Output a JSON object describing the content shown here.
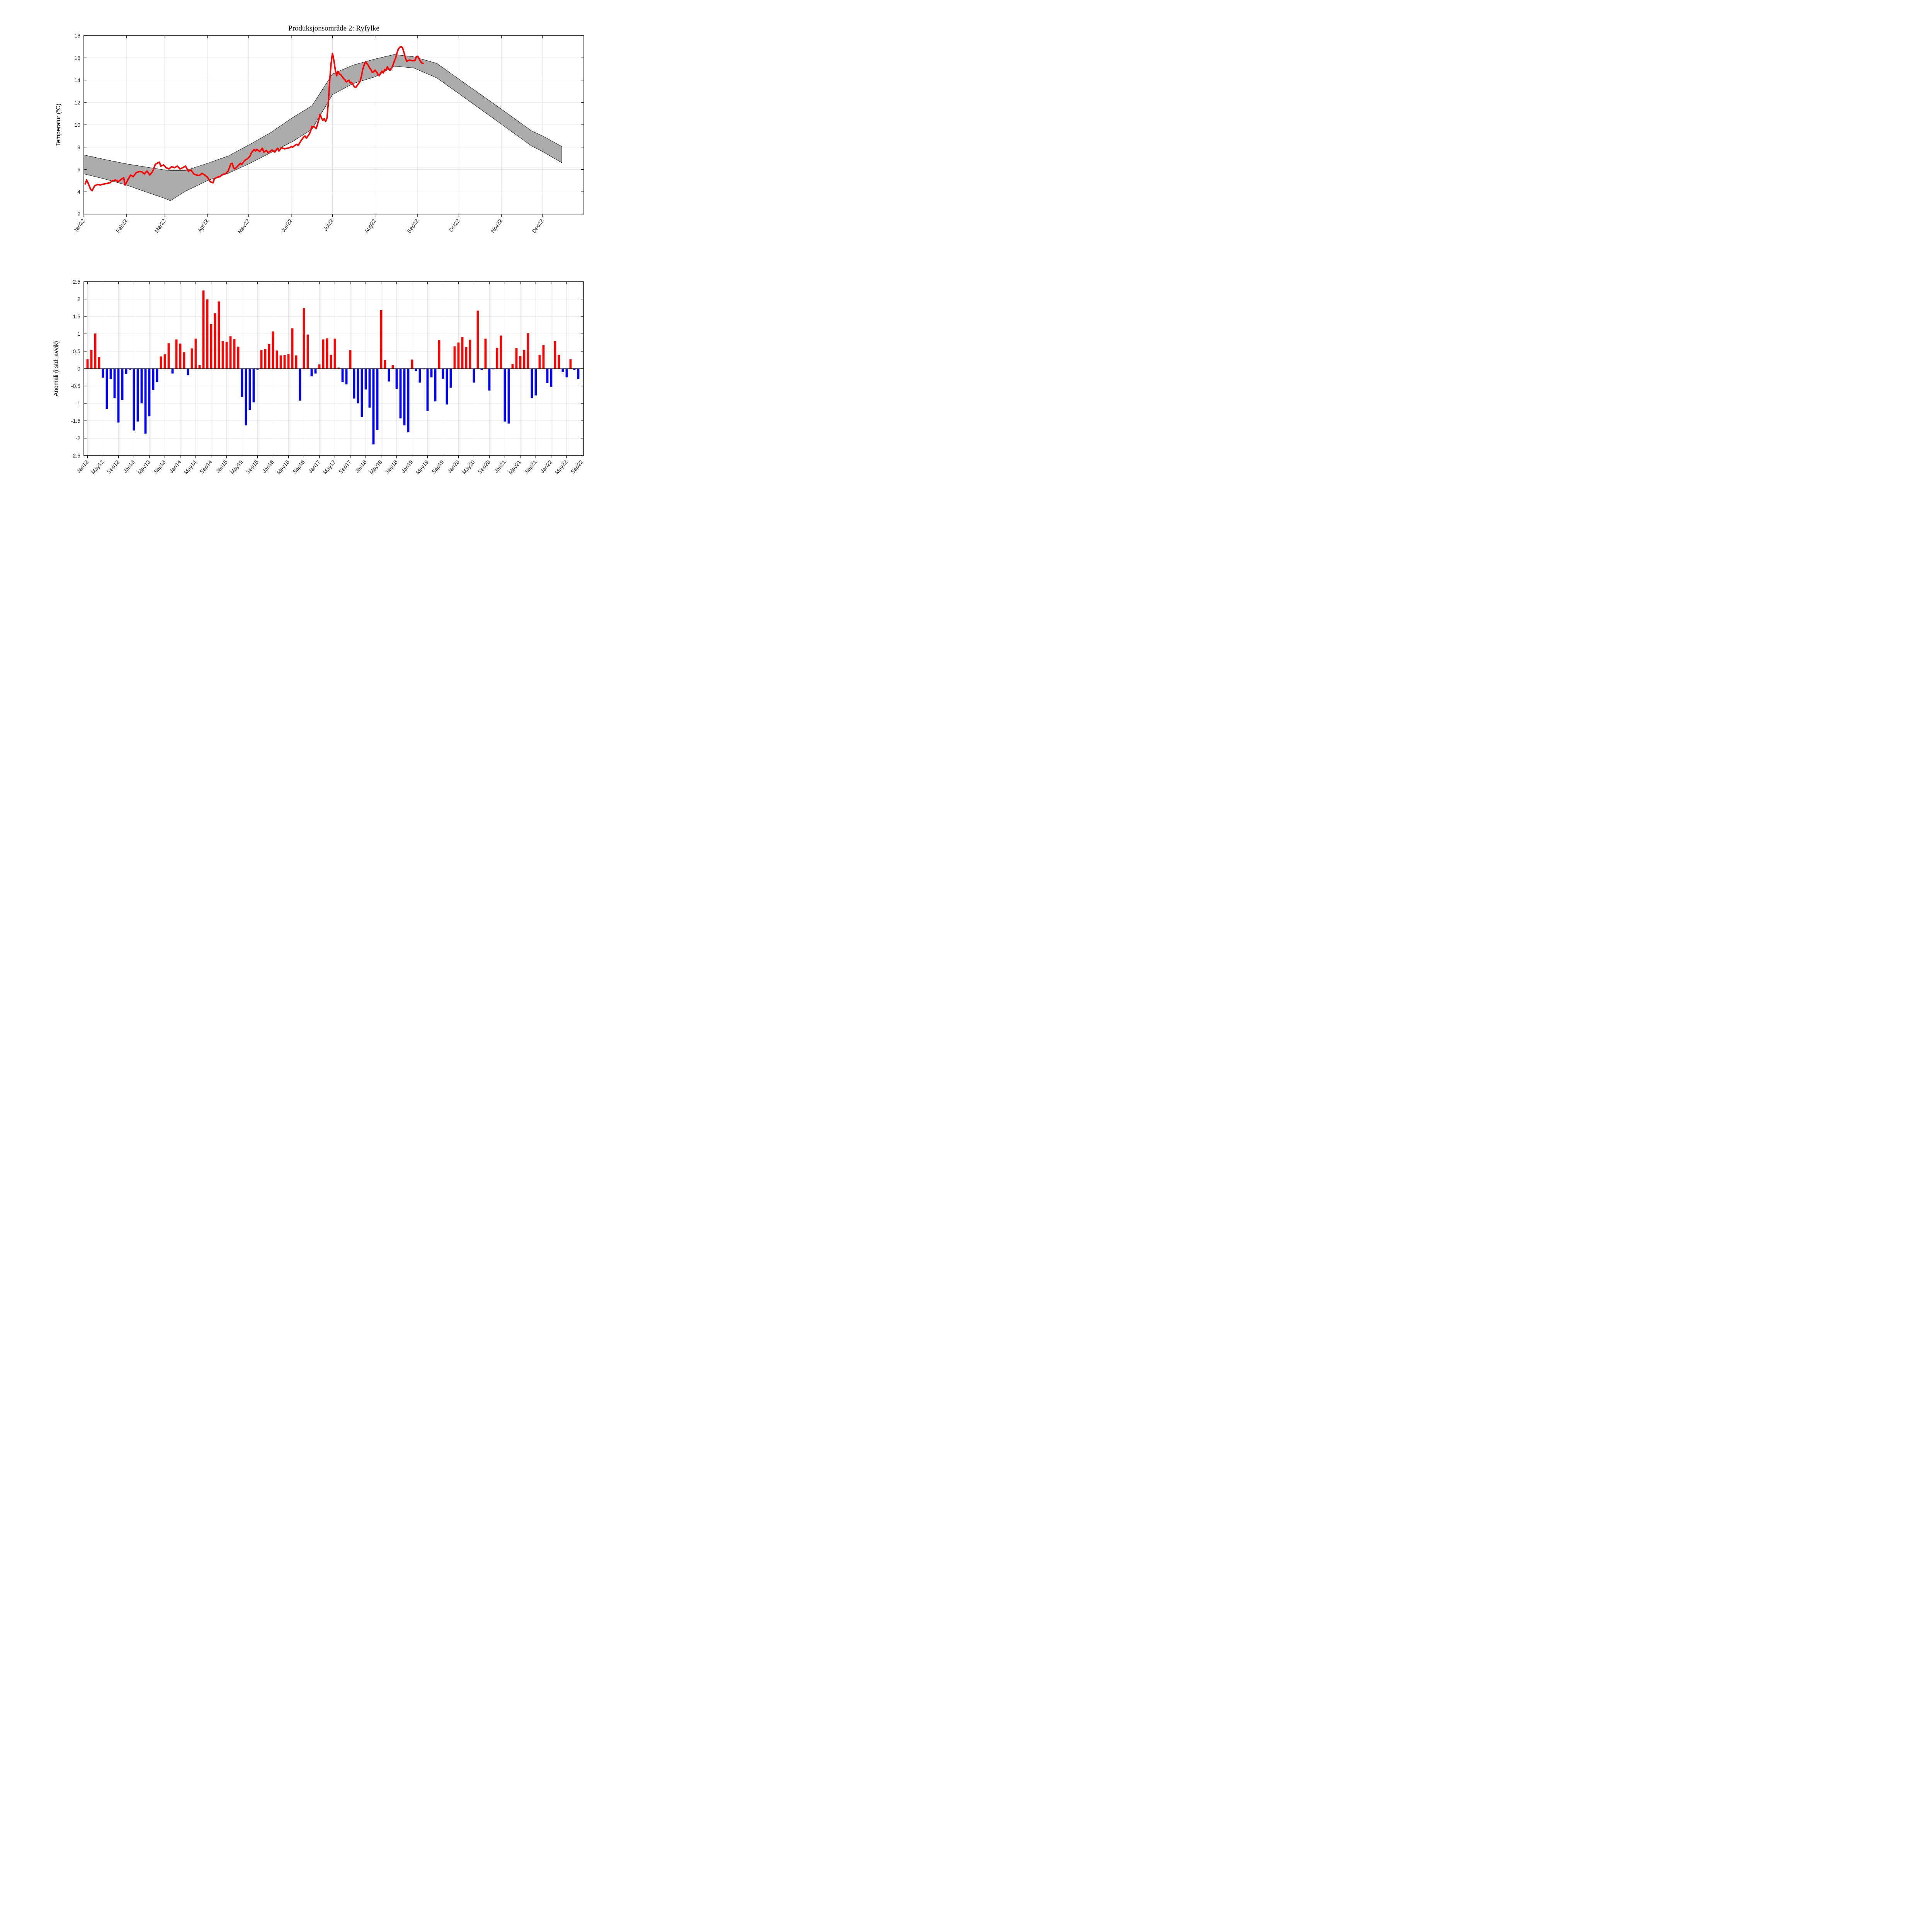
{
  "page": {
    "title": "Produksjonsområde 2: Ryfylke"
  },
  "chart_data": [
    {
      "type": "line",
      "title": "Produksjonsområde 2: Ryfylke",
      "ylabel_parts": [
        "Temperatur (",
        "o",
        "C)"
      ],
      "ylim": [
        2,
        18
      ],
      "yticks": [
        2,
        4,
        6,
        8,
        10,
        12,
        14,
        16,
        18
      ],
      "ytick_labels": [
        "2",
        "4",
        "6",
        "8",
        "10",
        "12",
        "14",
        "16",
        "18"
      ],
      "x_range_days": [
        0,
        364
      ],
      "xtick_days": [
        0,
        31,
        59,
        90,
        120,
        151,
        181,
        212,
        243,
        273,
        304,
        334
      ],
      "xtick_labels": [
        "Jan22",
        "Feb22",
        "Mar22",
        "Apr22",
        "May22",
        "Jun22",
        "Jul22",
        "Aug22",
        "Sep22",
        "Oct22",
        "Nov22",
        "Dec22"
      ],
      "grid": true,
      "line_color": "#ff0000",
      "band_fill": "#ababab",
      "band_edge": "#000000",
      "series": [
        {
          "name": "temperatur-2022",
          "points": [
            [
              1,
              4.7
            ],
            [
              2,
              5.05
            ],
            [
              3,
              4.8
            ],
            [
              5,
              4.2
            ],
            [
              6,
              4.1
            ],
            [
              8,
              4.55
            ],
            [
              10,
              4.65
            ],
            [
              12,
              4.6
            ],
            [
              13,
              4.65
            ],
            [
              15,
              4.7
            ],
            [
              17,
              4.75
            ],
            [
              19,
              4.8
            ],
            [
              21,
              5.0
            ],
            [
              23,
              5.05
            ],
            [
              25,
              4.9
            ],
            [
              27,
              5.1
            ],
            [
              29,
              5.25
            ],
            [
              30,
              4.6
            ],
            [
              32,
              5.05
            ],
            [
              34,
              5.5
            ],
            [
              36,
              5.35
            ],
            [
              38,
              5.7
            ],
            [
              40,
              5.8
            ],
            [
              42,
              5.8
            ],
            [
              44,
              5.6
            ],
            [
              46,
              5.85
            ],
            [
              48,
              5.5
            ],
            [
              50,
              5.8
            ],
            [
              52,
              6.45
            ],
            [
              54,
              6.6
            ],
            [
              55,
              6.65
            ],
            [
              56,
              6.3
            ],
            [
              58,
              6.4
            ],
            [
              60,
              6.15
            ],
            [
              62,
              6.05
            ],
            [
              64,
              6.25
            ],
            [
              66,
              6.15
            ],
            [
              68,
              6.3
            ],
            [
              70,
              6.05
            ],
            [
              72,
              6.15
            ],
            [
              74,
              6.3
            ],
            [
              76,
              5.85
            ],
            [
              78,
              5.95
            ],
            [
              80,
              5.6
            ],
            [
              82,
              5.5
            ],
            [
              84,
              5.45
            ],
            [
              86,
              5.65
            ],
            [
              88,
              5.5
            ],
            [
              90,
              5.3
            ],
            [
              92,
              4.9
            ],
            [
              94,
              4.8
            ],
            [
              95,
              5.15
            ],
            [
              97,
              5.3
            ],
            [
              99,
              5.35
            ],
            [
              101,
              5.55
            ],
            [
              103,
              5.6
            ],
            [
              105,
              5.85
            ],
            [
              107,
              6.5
            ],
            [
              108,
              6.55
            ],
            [
              109,
              6.15
            ],
            [
              110,
              6.05
            ],
            [
              112,
              6.3
            ],
            [
              114,
              6.55
            ],
            [
              115,
              6.45
            ],
            [
              117,
              6.8
            ],
            [
              119,
              6.95
            ],
            [
              121,
              7.2
            ],
            [
              122,
              7.5
            ],
            [
              124,
              7.8
            ],
            [
              125,
              7.65
            ],
            [
              126,
              7.8
            ],
            [
              128,
              7.6
            ],
            [
              130,
              7.9
            ],
            [
              131,
              7.55
            ],
            [
              133,
              7.7
            ],
            [
              134,
              7.5
            ],
            [
              136,
              7.65
            ],
            [
              137,
              7.75
            ],
            [
              139,
              7.55
            ],
            [
              141,
              7.9
            ],
            [
              142,
              7.65
            ],
            [
              144,
              7.95
            ],
            [
              146,
              7.85
            ],
            [
              148,
              7.9
            ],
            [
              150,
              7.95
            ],
            [
              151,
              8.05
            ],
            [
              152,
              8.0
            ],
            [
              153,
              8.1
            ],
            [
              155,
              8.25
            ],
            [
              156,
              8.15
            ],
            [
              158,
              8.55
            ],
            [
              160,
              8.9
            ],
            [
              161,
              9.0
            ],
            [
              162,
              8.8
            ],
            [
              164,
              9.15
            ],
            [
              165,
              9.4
            ],
            [
              166,
              9.85
            ],
            [
              168,
              9.8
            ],
            [
              169,
              9.65
            ],
            [
              170,
              10.0
            ],
            [
              171,
              10.45
            ],
            [
              172,
              10.95
            ],
            [
              173,
              10.6
            ],
            [
              174,
              10.4
            ],
            [
              175,
              10.55
            ],
            [
              176,
              10.3
            ],
            [
              177,
              10.6
            ],
            [
              178,
              12.0
            ],
            [
              179,
              14.0
            ],
            [
              180,
              15.5
            ],
            [
              181,
              16.4
            ],
            [
              182,
              15.8
            ],
            [
              183,
              14.95
            ],
            [
              184,
              14.4
            ],
            [
              185,
              14.8
            ],
            [
              186,
              14.55
            ],
            [
              187,
              14.5
            ],
            [
              189,
              14.15
            ],
            [
              190,
              14.05
            ],
            [
              191,
              13.85
            ],
            [
              193,
              14.0
            ],
            [
              194,
              13.75
            ],
            [
              195,
              13.8
            ],
            [
              197,
              13.4
            ],
            [
              198,
              13.35
            ],
            [
              200,
              13.7
            ],
            [
              201,
              13.87
            ],
            [
              202,
              14.3
            ],
            [
              203,
              14.95
            ],
            [
              204,
              15.35
            ],
            [
              205,
              15.65
            ],
            [
              206,
              15.5
            ],
            [
              207,
              15.35
            ],
            [
              208,
              15.1
            ],
            [
              209,
              14.95
            ],
            [
              210,
              14.7
            ],
            [
              211,
              14.75
            ],
            [
              212,
              14.9
            ],
            [
              213,
              14.75
            ],
            [
              214,
              14.55
            ],
            [
              215,
              14.4
            ],
            [
              216,
              14.6
            ],
            [
              217,
              14.8
            ],
            [
              218,
              14.65
            ],
            [
              219,
              14.95
            ],
            [
              220,
              14.9
            ],
            [
              221,
              15.2
            ],
            [
              222,
              14.95
            ],
            [
              223,
              14.9
            ],
            [
              224,
              15.05
            ],
            [
              225,
              15.35
            ],
            [
              226,
              15.7
            ],
            [
              227,
              16.0
            ],
            [
              228,
              16.45
            ],
            [
              229,
              16.8
            ],
            [
              230,
              16.95
            ],
            [
              231,
              17.0
            ],
            [
              232,
              16.9
            ],
            [
              233,
              16.5
            ],
            [
              234,
              16.05
            ],
            [
              235,
              15.7
            ],
            [
              237,
              15.8
            ],
            [
              239,
              15.75
            ],
            [
              241,
              15.75
            ],
            [
              242,
              16.1
            ],
            [
              243,
              16.15
            ],
            [
              244,
              15.95
            ],
            [
              245,
              15.7
            ],
            [
              246,
              15.55
            ],
            [
              247,
              15.5
            ]
          ]
        },
        {
          "name": "historisk-band",
          "band": [
            [
              0,
              5.6,
              7.3
            ],
            [
              15,
              5.15,
              6.9
            ],
            [
              31,
              4.6,
              6.5
            ],
            [
              46,
              3.95,
              6.2
            ],
            [
              59,
              3.4,
              5.95
            ],
            [
              63,
              3.2,
              5.9
            ],
            [
              74,
              4.05,
              5.9
            ],
            [
              90,
              5.0,
              6.55
            ],
            [
              105,
              5.65,
              7.2
            ],
            [
              121,
              6.55,
              8.25
            ],
            [
              136,
              7.5,
              9.3
            ],
            [
              152,
              8.5,
              10.65
            ],
            [
              166,
              9.6,
              11.7
            ],
            [
              181,
              12.7,
              14.55
            ],
            [
              196,
              13.7,
              15.35
            ],
            [
              212,
              14.3,
              15.9
            ],
            [
              226,
              15.25,
              16.3
            ],
            [
              240,
              15.1,
              16.1
            ],
            [
              257,
              14.2,
              15.5
            ],
            [
              273,
              12.8,
              14.1
            ],
            [
              304,
              10.05,
              11.4
            ],
            [
              326,
              8.1,
              9.45
            ],
            [
              334,
              7.6,
              9.0
            ],
            [
              348,
              6.6,
              8.05
            ]
          ]
        }
      ]
    },
    {
      "type": "bar",
      "ylabel": "Anomali (i std. avvik)",
      "ylim": [
        -2.5,
        2.5
      ],
      "yticks": [
        -2.5,
        -2,
        -1.5,
        -1,
        -0.5,
        0,
        0.5,
        1,
        1.5,
        2,
        2.5
      ],
      "ytick_labels": [
        "-2.5",
        "-2",
        "-1.5",
        "-1",
        "-0.5",
        "0",
        "0.5",
        "1",
        "1.5",
        "2",
        "2.5"
      ],
      "start_month": "Jan 2012",
      "end_month": "Aug 2022",
      "months_per_tick": 4,
      "xtick_labels": [
        "Jan12",
        "May12",
        "Sep12",
        "Jan13",
        "May13",
        "Sep13",
        "Jan14",
        "May14",
        "Sep14",
        "Jan15",
        "May15",
        "Sep15",
        "Jan16",
        "May16",
        "Sep16",
        "Jan17",
        "May17",
        "Sep17",
        "Jan18",
        "May18",
        "Sep18",
        "Jan19",
        "May19",
        "Sep19",
        "Jan20",
        "May20",
        "Sep20",
        "Jan21",
        "May21",
        "Sep21",
        "Jan22",
        "May22",
        "Sep22"
      ],
      "pos_color": "#ff0000",
      "neg_color": "#0000ff",
      "values": [
        0.27,
        0.54,
        1.01,
        0.33,
        -0.26,
        -1.16,
        -0.3,
        -0.85,
        -1.55,
        -0.9,
        -0.15,
        -0.03,
        -1.78,
        -1.52,
        -1.0,
        -1.87,
        -1.37,
        -0.61,
        -0.39,
        0.35,
        0.41,
        0.73,
        -0.14,
        0.84,
        0.72,
        0.47,
        -0.19,
        0.58,
        0.86,
        0.1,
        2.25,
        1.99,
        1.28,
        1.59,
        1.93,
        0.79,
        0.77,
        0.93,
        0.85,
        0.63,
        -0.81,
        -1.63,
        -1.19,
        -0.97,
        -0.03,
        0.53,
        0.56,
        0.71,
        1.07,
        0.52,
        0.38,
        0.39,
        0.42,
        1.16,
        0.38,
        -0.92,
        1.74,
        0.98,
        -0.22,
        -0.14,
        0.12,
        0.84,
        0.87,
        0.4,
        0.86,
        0.03,
        -0.39,
        -0.45,
        0.53,
        -0.86,
        -1.0,
        -1.4,
        -0.6,
        -1.12,
        -2.18,
        -1.76,
        1.68,
        0.25,
        -0.37,
        0.1,
        -0.58,
        -1.43,
        -1.63,
        -1.83,
        0.26,
        -0.07,
        -0.4,
        -0.02,
        -1.22,
        -0.25,
        -0.94,
        0.82,
        -0.29,
        -1.03,
        -0.55,
        0.64,
        0.75,
        0.91,
        0.62,
        0.83,
        -0.4,
        1.67,
        -0.04,
        0.86,
        -0.63,
        -0.02,
        0.6,
        0.95,
        -1.52,
        -1.58,
        0.13,
        0.59,
        0.36,
        0.54,
        1.02,
        -0.85,
        -0.77,
        0.4,
        0.68,
        -0.42,
        -0.52,
        0.79,
        0.4,
        -0.09,
        -0.25,
        0.27,
        -0.04,
        -0.3
      ]
    }
  ]
}
